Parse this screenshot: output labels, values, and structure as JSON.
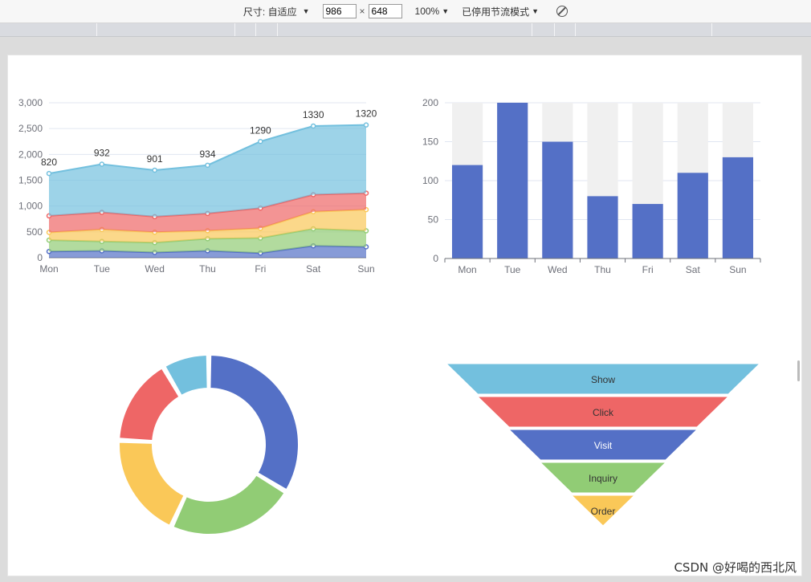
{
  "toolbar": {
    "size_label": "尺寸: 自适应",
    "width_value": "986",
    "times": "×",
    "height_value": "648",
    "zoom": "100%",
    "throttle": "已停用节流模式",
    "icons": [
      "caret-down-icon",
      "no-rotate-icon"
    ]
  },
  "watermark": "CSDN @好喝的西北风",
  "colors": {
    "blue": "#5470c6",
    "green": "#91cc75",
    "yellow": "#fac858",
    "red": "#ee6666",
    "cyan": "#73c0de",
    "bar_bg": "#f0f0f0"
  },
  "chart_data": [
    {
      "type": "area",
      "stacked": true,
      "categories": [
        "Mon",
        "Tue",
        "Wed",
        "Thu",
        "Fri",
        "Sat",
        "Sun"
      ],
      "ylim": [
        0,
        3000
      ],
      "yticks": [
        "0",
        "500",
        "1,000",
        "1,500",
        "2,000",
        "2,500",
        "3,000"
      ],
      "grid": true,
      "series": [
        {
          "values": [
            120,
            132,
            101,
            134,
            90,
            230,
            210
          ],
          "color": "#5470c6"
        },
        {
          "values": [
            220,
            182,
            191,
            234,
            290,
            330,
            310
          ],
          "color": "#91cc75"
        },
        {
          "values": [
            150,
            232,
            201,
            154,
            190,
            330,
            410
          ],
          "color": "#fac858"
        },
        {
          "values": [
            320,
            332,
            301,
            334,
            390,
            330,
            320
          ],
          "color": "#ee6666"
        },
        {
          "values": [
            820,
            932,
            901,
            934,
            1290,
            1330,
            1320
          ],
          "color": "#73c0de"
        }
      ],
      "top_labels": [
        "820",
        "932",
        "901",
        "934",
        "1290",
        "1330",
        "1320"
      ]
    },
    {
      "type": "bar",
      "categories": [
        "Mon",
        "Tue",
        "Wed",
        "Thu",
        "Fri",
        "Sat",
        "Sun"
      ],
      "values": [
        120,
        200,
        150,
        80,
        70,
        110,
        130
      ],
      "ylim": [
        0,
        200
      ],
      "yticks": [
        "0",
        "50",
        "100",
        "150",
        "200"
      ],
      "show_background": true,
      "grid": true
    },
    {
      "type": "pie",
      "donut": true,
      "slices": [
        {
          "value": 32,
          "color": "#5470c6"
        },
        {
          "value": 22,
          "color": "#91cc75"
        },
        {
          "value": 18,
          "color": "#fac858"
        },
        {
          "value": 15,
          "color": "#ee6666"
        },
        {
          "value": 8,
          "color": "#73c0de"
        }
      ]
    },
    {
      "type": "funnel",
      "stages": [
        {
          "label": "Show",
          "value": 100,
          "color": "#73c0de"
        },
        {
          "label": "Click",
          "value": 80,
          "color": "#ee6666"
        },
        {
          "label": "Visit",
          "value": 60,
          "color": "#5470c6"
        },
        {
          "label": "Inquiry",
          "value": 40,
          "color": "#91cc75"
        },
        {
          "label": "Order",
          "value": 20,
          "color": "#fac858"
        }
      ]
    }
  ]
}
